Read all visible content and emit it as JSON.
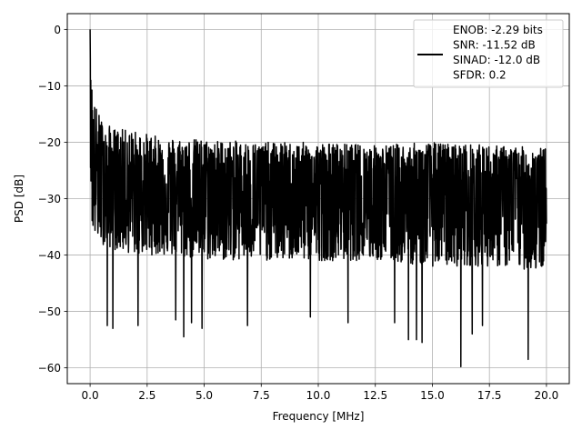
{
  "chart_data": {
    "type": "line",
    "title": "",
    "xlabel": "Frequency [MHz]",
    "ylabel": "PSD [dB]",
    "xlim": [
      -1.0,
      21.0
    ],
    "ylim": [
      -62.8,
      2.8
    ],
    "xticks": [
      0.0,
      2.5,
      5.0,
      7.5,
      10.0,
      12.5,
      15.0,
      17.5,
      20.0
    ],
    "xtick_labels": [
      "0.0",
      "2.5",
      "5.0",
      "7.5",
      "10.0",
      "12.5",
      "15.0",
      "17.5",
      "20.0"
    ],
    "yticks": [
      0,
      -10,
      -20,
      -30,
      -40,
      -50,
      -60
    ],
    "ytick_labels": [
      "0",
      "−10",
      "−20",
      "−30",
      "−40",
      "−50",
      "−60"
    ],
    "grid": true,
    "legend_position": "top-right",
    "series": [
      {
        "name": "ENOB: -2.29 bits\nSNR: -11.52 dB\nSINAD: -12.0 dB\nSFDR: 0.2",
        "color": "#000000",
        "x_range": [
          0.0,
          20.0
        ],
        "points": 2048,
        "peak": {
          "x": 0.0,
          "y": 0.0
        },
        "envelope_approx": {
          "x": [
            0.0,
            0.05,
            0.2,
            0.5,
            1.0,
            2.0,
            3.0,
            5.0,
            7.5,
            10.0,
            12.5,
            15.0,
            17.5,
            20.0
          ],
          "upper": [
            0.0,
            -8.0,
            -13.0,
            -16.0,
            -17.5,
            -18.0,
            -19.0,
            -19.5,
            -20.0,
            -20.0,
            -20.5,
            -20.0,
            -20.5,
            -21.0
          ],
          "median": [
            0.0,
            -20.0,
            -24.0,
            -26.0,
            -27.0,
            -27.5,
            -28.0,
            -28.5,
            -29.0,
            -29.0,
            -29.0,
            -29.0,
            -29.0,
            -29.0
          ],
          "lower": [
            -5.0,
            -35.0,
            -37.0,
            -38.0,
            -39.0,
            -40.0,
            -40.0,
            -41.0,
            -41.0,
            -41.0,
            -41.0,
            -42.0,
            -42.0,
            -43.0
          ]
        },
        "deep_dips": [
          {
            "x": 0.75,
            "y": -52.5
          },
          {
            "x": 1.0,
            "y": -53.0
          },
          {
            "x": 2.1,
            "y": -52.5
          },
          {
            "x": 3.75,
            "y": -51.5
          },
          {
            "x": 4.1,
            "y": -54.5
          },
          {
            "x": 4.45,
            "y": -52.0
          },
          {
            "x": 4.9,
            "y": -53.0
          },
          {
            "x": 6.9,
            "y": -52.5
          },
          {
            "x": 9.65,
            "y": -51.0
          },
          {
            "x": 11.3,
            "y": -52.0
          },
          {
            "x": 13.35,
            "y": -52.0
          },
          {
            "x": 13.95,
            "y": -55.0
          },
          {
            "x": 14.3,
            "y": -55.0
          },
          {
            "x": 14.55,
            "y": -55.5
          },
          {
            "x": 16.25,
            "y": -59.8
          },
          {
            "x": 16.75,
            "y": -54.0
          },
          {
            "x": 17.2,
            "y": -52.5
          },
          {
            "x": 19.2,
            "y": -58.5
          }
        ]
      }
    ]
  }
}
